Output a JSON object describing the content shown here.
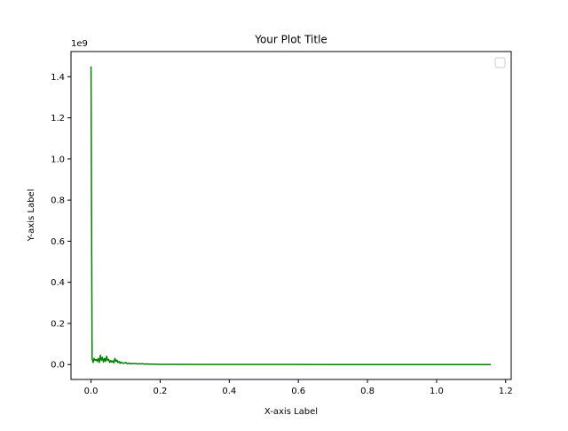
{
  "chart_data": {
    "type": "line",
    "title": "Your Plot Title",
    "xlabel": "X-axis Label",
    "ylabel": "Y-axis Label",
    "y_offset_label": "1e9",
    "xlim": [
      -0.058,
      1.216
    ],
    "ylim": [
      -0.0725,
      1.5225
    ],
    "x_ticks": [
      0.0,
      0.2,
      0.4,
      0.6,
      0.8,
      1.0,
      1.2
    ],
    "x_tick_labels": [
      "0.0",
      "0.2",
      "0.4",
      "0.6",
      "0.8",
      "1.0",
      "1.2"
    ],
    "y_ticks": [
      0.0,
      0.2,
      0.4,
      0.6,
      0.8,
      1.0,
      1.2,
      1.4
    ],
    "y_tick_labels": [
      "0.0",
      "0.2",
      "0.4",
      "0.6",
      "0.8",
      "1.0",
      "1.2",
      "1.4"
    ],
    "grid": false,
    "legend": {
      "placement": "top-right",
      "entries": []
    },
    "series": [
      {
        "color": "#008000",
        "x": [
          0.0,
          0.003,
          0.006,
          0.009,
          0.012,
          0.015,
          0.018,
          0.021,
          0.024,
          0.027,
          0.03,
          0.033,
          0.036,
          0.039,
          0.042,
          0.045,
          0.048,
          0.051,
          0.054,
          0.057,
          0.06,
          0.063,
          0.066,
          0.069,
          0.072,
          0.075,
          0.078,
          0.081,
          0.084,
          0.087,
          0.09,
          0.095,
          0.1,
          0.105,
          0.11,
          0.115,
          0.12,
          0.125,
          0.13,
          0.135,
          0.14,
          0.145,
          0.15,
          0.155,
          0.16,
          0.17,
          0.18,
          0.2,
          0.22,
          0.25,
          0.3,
          0.4,
          0.5,
          0.6,
          0.7,
          0.8,
          0.9,
          1.0,
          1.1,
          1.157
        ],
        "y": [
          1.45,
          0.03,
          0.01,
          0.03,
          0.02,
          0.025,
          0.015,
          0.03,
          0.01,
          0.045,
          0.02,
          0.035,
          0.012,
          0.03,
          0.015,
          0.04,
          0.02,
          0.025,
          0.01,
          0.02,
          0.012,
          0.018,
          0.008,
          0.03,
          0.015,
          0.022,
          0.01,
          0.015,
          0.006,
          0.012,
          0.008,
          0.006,
          0.01,
          0.004,
          0.007,
          0.003,
          0.006,
          0.004,
          0.005,
          0.003,
          0.004,
          0.003,
          0.004,
          0.002,
          0.003,
          0.002,
          0.002,
          0.001,
          0.001,
          0.0008,
          0.0005,
          0.0003,
          0.0002,
          0.0002,
          0.0001,
          0.0001,
          0.0001,
          0.0001,
          0.0001,
          0.0001
        ]
      }
    ]
  }
}
